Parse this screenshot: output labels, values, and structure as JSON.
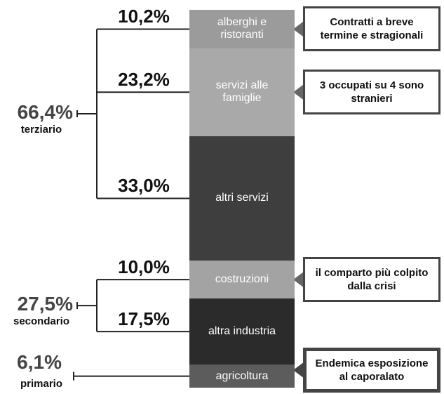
{
  "chart_data": {
    "type": "stacked_bar",
    "groups": [
      {
        "label": "terziario",
        "value": 66.4,
        "value_label": "66,4%",
        "segments": [
          {
            "name": "alberghi e ristoranti",
            "color": "#9b9b9b",
            "value": 10.2,
            "value_label": "10,2%",
            "note": "Contratti a breve termine e stragionali"
          },
          {
            "name": "servizi alle famiglie",
            "color": "#a9a9a9",
            "value": 23.2,
            "value_label": "23,2%",
            "note": "3 occupati su 4 sono stranieri"
          },
          {
            "name": "altri servizi",
            "color": "#3e3e3e",
            "value": 33.0,
            "value_label": "33,0%"
          }
        ]
      },
      {
        "label": "secondario",
        "value": 27.5,
        "value_label": "27,5%",
        "segments": [
          {
            "name": "costruzioni",
            "color": "#a3a3a3",
            "value": 10.0,
            "value_label": "10,0%",
            "note": "il comparto più colpito dalla crisi"
          },
          {
            "name": "altra industria",
            "color": "#2b2b2b",
            "value": 17.5,
            "value_label": "17,5%"
          }
        ]
      },
      {
        "label": "primario",
        "value": 6.1,
        "value_label": "6,1%",
        "segments": [
          {
            "name": "agricoltura",
            "color": "#5c5c5c",
            "value": 6.1,
            "note": "Endemica esposizione al caporalato"
          }
        ]
      }
    ]
  }
}
